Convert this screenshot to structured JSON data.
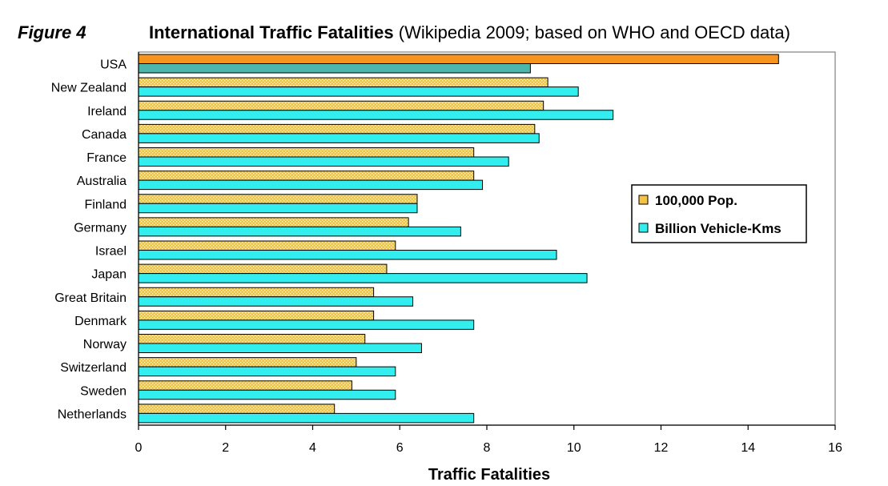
{
  "figure_label": "Figure 4",
  "chart_data": {
    "type": "bar",
    "orientation": "horizontal",
    "title": "International Traffic Fatalities",
    "subtitle": "(Wikipedia 2009; based on WHO and OECD data)",
    "xlabel": "Traffic Fatalities",
    "ylabel": "",
    "xlim": [
      0,
      16
    ],
    "xticks": [
      0,
      2,
      4,
      6,
      8,
      10,
      12,
      14,
      16
    ],
    "grid": false,
    "legend_position": "right",
    "categories": [
      "USA",
      "New Zealand",
      "Ireland",
      "Canada",
      "France",
      "Australia",
      "Finland",
      "Germany",
      "Israel",
      "Japan",
      "Great Britain",
      "Denmark",
      "Norway",
      "Switzerland",
      "Sweden",
      "Netherlands"
    ],
    "series": [
      {
        "name": "100,000 Pop.",
        "color": "#F5C242",
        "values": [
          14.7,
          9.4,
          9.3,
          9.1,
          7.7,
          7.7,
          6.4,
          6.2,
          5.9,
          5.7,
          5.4,
          5.4,
          5.2,
          5.0,
          4.9,
          4.5
        ]
      },
      {
        "name": "Billion Vehicle-Kms",
        "color": "#33EEEE",
        "values": [
          9.0,
          10.1,
          10.9,
          9.2,
          8.5,
          7.9,
          6.4,
          7.4,
          9.6,
          10.3,
          6.3,
          7.7,
          6.5,
          5.9,
          5.9,
          7.7
        ]
      }
    ],
    "highlight": {
      "category": "USA",
      "colors": [
        "#F7941D",
        "#4DB6AC"
      ]
    }
  }
}
